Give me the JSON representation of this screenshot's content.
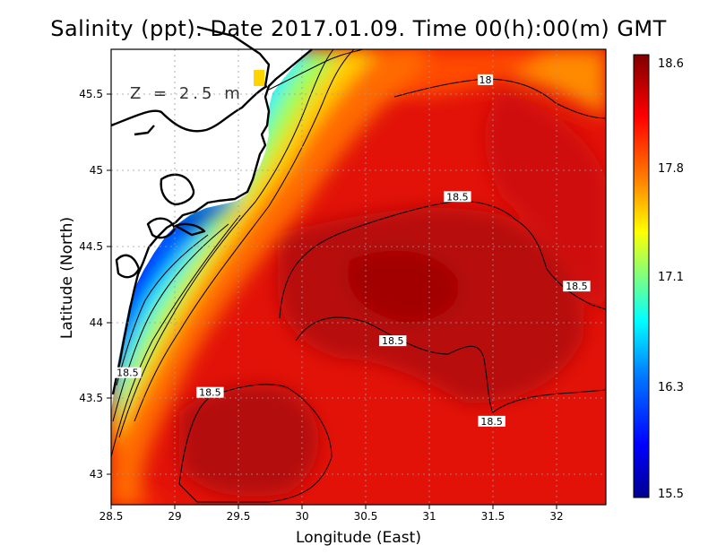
{
  "title": "Salinity (ppt). Date 2017.01.09. Time 00(h):00(m) GMT",
  "depth_label": "Z = 2.5 m",
  "chart_data": {
    "type": "heatmap",
    "xlabel": "Longitude (East)",
    "ylabel": "Latitude (North)",
    "xlim": [
      28.5,
      32.4
    ],
    "ylim": [
      42.8,
      45.8
    ],
    "xticks": [
      "28.5",
      "29",
      "29.5",
      "30",
      "30.5",
      "31",
      "31.5",
      "32"
    ],
    "yticks": [
      "43",
      "43.5",
      "44",
      "44.5",
      "45",
      "45.5"
    ],
    "grid": true,
    "colorbar": {
      "min": 15.5,
      "max": 18.6,
      "ticks": [
        "18.6",
        "17.8",
        "17.1",
        "16.3",
        "15.5"
      ],
      "colors": [
        "#00008f",
        "#0000ff",
        "#007fff",
        "#00ffff",
        "#7fff7f",
        "#ffff00",
        "#ff7f00",
        "#ff0000",
        "#7f0000"
      ]
    },
    "contour_labels": [
      {
        "text": "18",
        "lon": 31.45,
        "lat": 45.6
      },
      {
        "text": "18.5",
        "lon": 31.23,
        "lat": 44.83
      },
      {
        "text": "18.5",
        "lon": 32.17,
        "lat": 44.24
      },
      {
        "text": "18.5",
        "lon": 30.72,
        "lat": 43.88
      },
      {
        "text": "18.5",
        "lon": 28.63,
        "lat": 43.67
      },
      {
        "text": "18.5",
        "lon": 29.28,
        "lat": 43.54
      },
      {
        "text": "18.5",
        "lon": 31.5,
        "lat": 43.35
      }
    ]
  }
}
